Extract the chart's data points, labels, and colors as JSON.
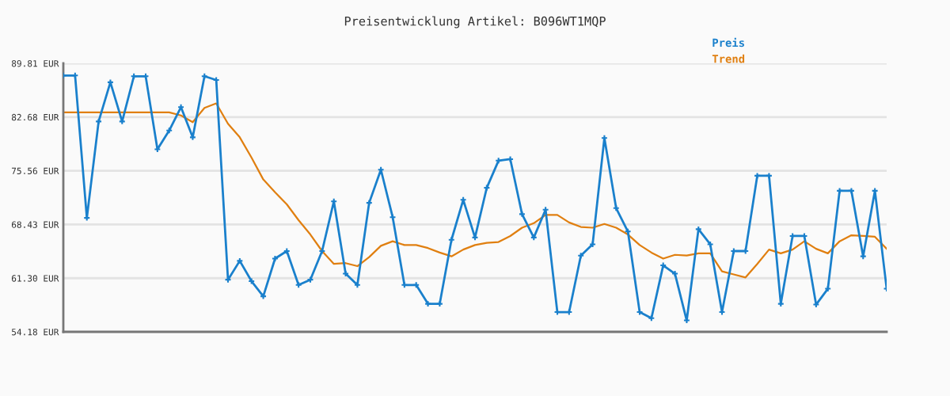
{
  "chart_data": {
    "type": "line",
    "title": "Preisentwicklung Artikel: B096WT1MQP",
    "categories": [
      null,
      null,
      null,
      null,
      null,
      null,
      null,
      null,
      null,
      null,
      null,
      null,
      null,
      null,
      null,
      null,
      null,
      null,
      null,
      null,
      null,
      null,
      null,
      null,
      null,
      null,
      null,
      null,
      null,
      null,
      null,
      null,
      null,
      null,
      null,
      null,
      null,
      null,
      null,
      null,
      null,
      null,
      null,
      null,
      null,
      null,
      null,
      null,
      null,
      null,
      null,
      null,
      null,
      null,
      null,
      null,
      null,
      null,
      null,
      null,
      null,
      null,
      null,
      null,
      null,
      null,
      null,
      null,
      null,
      null,
      null
    ],
    "series": [
      {
        "name": "Preis",
        "color": "#1a80cc",
        "marker": "cross",
        "values": [
          88.2,
          88.2,
          69.3,
          82.1,
          87.3,
          82.1,
          88.1,
          88.1,
          78.4,
          80.9,
          84.0,
          80.0,
          88.1,
          87.6,
          61.1,
          63.6,
          60.9,
          58.9,
          63.9,
          64.9,
          60.4,
          61.1,
          64.9,
          71.5,
          61.9,
          60.4,
          71.3,
          75.7,
          69.4,
          60.4,
          60.4,
          57.9,
          57.9,
          66.4,
          71.7,
          66.7,
          73.3,
          76.9,
          77.1,
          69.8,
          66.7,
          70.4,
          56.8,
          56.8,
          64.3,
          65.8,
          79.9,
          70.6,
          67.5,
          56.8,
          56.0,
          63.0,
          61.9,
          55.7,
          67.8,
          65.8,
          56.8,
          64.9,
          64.9,
          74.9,
          74.9,
          57.9,
          66.9,
          66.9,
          57.8,
          59.9,
          72.9,
          72.9,
          64.2,
          72.9,
          59.9
        ]
      },
      {
        "name": "Trend",
        "color": "#e07f10",
        "marker": "none",
        "values": [
          83.3,
          83.3,
          83.3,
          83.3,
          83.3,
          83.3,
          83.3,
          83.3,
          83.3,
          83.3,
          82.9,
          82.0,
          83.9,
          84.5,
          81.8,
          80.0,
          77.3,
          74.4,
          72.7,
          71.1,
          69.0,
          67.1,
          64.9,
          63.2,
          63.3,
          62.9,
          64.1,
          65.6,
          66.2,
          65.7,
          65.7,
          65.3,
          64.7,
          64.2,
          65.1,
          65.7,
          66.0,
          66.1,
          66.9,
          68.0,
          68.6,
          69.7,
          69.7,
          68.7,
          68.1,
          68.0,
          68.5,
          68.0,
          67.1,
          65.7,
          64.7,
          63.9,
          64.4,
          64.3,
          64.6,
          64.6,
          62.2,
          61.8,
          61.4,
          63.2,
          65.1,
          64.6,
          65.1,
          66.2,
          65.2,
          64.6,
          66.2,
          67.0,
          66.9,
          66.8,
          65.2
        ]
      }
    ],
    "ylim": [
      54.18,
      89.81
    ],
    "yticks": [
      {
        "value": 54.18,
        "label": "54.18 EUR"
      },
      {
        "value": 61.3,
        "label": "61.30 EUR"
      },
      {
        "value": 68.43,
        "label": "68.43 EUR"
      },
      {
        "value": 75.56,
        "label": "75.56 EUR"
      },
      {
        "value": 82.68,
        "label": "82.68 EUR"
      },
      {
        "value": 89.81,
        "label": "89.81 EUR"
      }
    ],
    "grid": "y",
    "legend": "top right",
    "line_style": "solid"
  }
}
